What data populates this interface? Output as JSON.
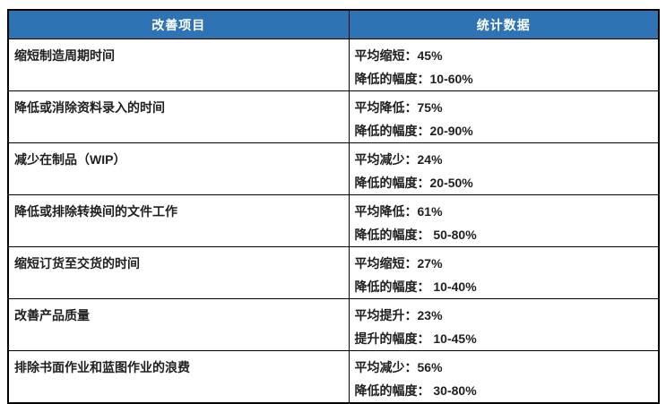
{
  "table": {
    "headers": {
      "item": "改善项目",
      "stats": "统计数据"
    },
    "rows": [
      {
        "item": "缩短制造周期时间",
        "line1": "平均缩短：45%",
        "line2": "降低的幅度：10-60%"
      },
      {
        "item": "降低或消除资料录入的时间",
        "line1": "平均降低：75%",
        "line2": "降低的幅度：20-90%"
      },
      {
        "item": "减少在制品（WIP）",
        "line1": "平均减少：24%",
        "line2": "降低的幅度：20-50%"
      },
      {
        "item": "降低或排除转换间的文件工作",
        "line1": "平均降低：61%",
        "line2": "降低的幅度： 50-80%"
      },
      {
        "item": "缩短订货至交货的时间",
        "line1": "平均缩短：27%",
        "line2": "降低的幅度： 10-40%"
      },
      {
        "item": "改善产品质量",
        "line1": "平均提升：23%",
        "line2": "提升的幅度： 10-45%"
      },
      {
        "item": "排除书面作业和蓝图作业的浪费",
        "line1": "平均减少：56%",
        "line2": "降低的幅度： 30-80%"
      }
    ],
    "colors": {
      "header_bg": "#2E74B5",
      "header_text": "#FFFFFF",
      "body_text": "#1F1F1F",
      "border": "#000000"
    }
  }
}
